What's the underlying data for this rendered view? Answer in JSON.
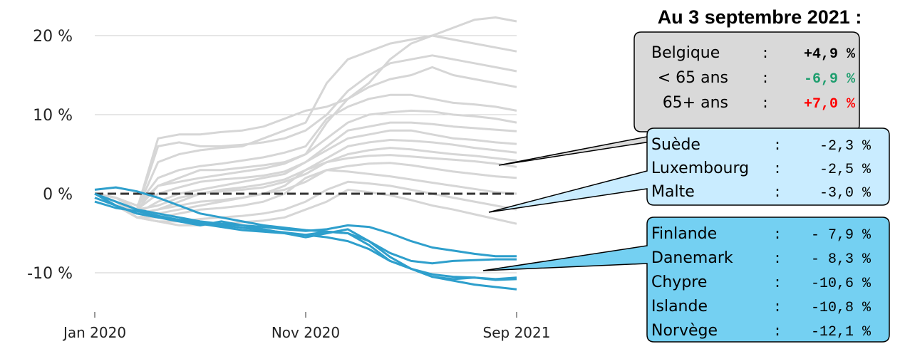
{
  "chart_data": {
    "type": "line",
    "title": "",
    "xlabel": "",
    "ylabel": "",
    "x_ticks": [
      "Jan 2020",
      "Nov 2020",
      "Sep 2021"
    ],
    "y_ticks": [
      {
        "value": 20,
        "label": "20 %"
      },
      {
        "value": 10,
        "label": "10 %"
      },
      {
        "value": 0,
        "label": "0 %"
      },
      {
        "value": -10,
        "label": "-10 %"
      }
    ],
    "ylim": [
      -15,
      23
    ],
    "xlim": [
      "2020-01",
      "2021-09"
    ],
    "reference_line": 0,
    "grid": "horizontal",
    "colors": {
      "highlight": "#2e9fcc",
      "background": "#d6d6d6",
      "reference": "#333333",
      "positive": "#ff0000",
      "negative": "#1e9e6e"
    },
    "x_index": [
      "2020-01",
      "2020-02",
      "2020-03",
      "2020-04",
      "2020-05",
      "2020-06",
      "2020-07",
      "2020-08",
      "2020-09",
      "2020-10",
      "2020-11",
      "2020-12",
      "2021-01",
      "2021-02",
      "2021-03",
      "2021-04",
      "2021-05",
      "2021-06",
      "2021-07",
      "2021-08",
      "2021-09"
    ],
    "background_series": [
      [
        0,
        -1,
        -2,
        7,
        7.5,
        7.5,
        7.8,
        8,
        8.5,
        9.5,
        10.5,
        11,
        12,
        14,
        17,
        19,
        20,
        21,
        22,
        22.3,
        21.8
      ],
      [
        0,
        -1,
        -2,
        4,
        5,
        5.5,
        5.8,
        6,
        7,
        8,
        9,
        14,
        17,
        18,
        19,
        19.5,
        20,
        19.5,
        19,
        18.5,
        18
      ],
      [
        0,
        -1,
        -2,
        6,
        6.5,
        6,
        6,
        6.2,
        6.5,
        7,
        8,
        10,
        13,
        15,
        16.5,
        17,
        17.5,
        17,
        16.5,
        16,
        15.5
      ],
      [
        0,
        -0.5,
        -1.5,
        1,
        2,
        3,
        3,
        3.3,
        3.6,
        4,
        5,
        9,
        12,
        13.5,
        14.5,
        15,
        16,
        15,
        14.5,
        14,
        13.5
      ],
      [
        0,
        -0.5,
        -1.5,
        2,
        3,
        3.5,
        3.8,
        4.2,
        4.6,
        5.2,
        6,
        9.5,
        11,
        12,
        12.5,
        12.5,
        12,
        11.5,
        11.3,
        11,
        10.5
      ],
      [
        0,
        -1,
        -2,
        1,
        1.5,
        2,
        2.4,
        2.8,
        3.2,
        3.8,
        5,
        7,
        9,
        10,
        10.3,
        10.5,
        10.4,
        10,
        9.8,
        9.5,
        9
      ],
      [
        0,
        -1,
        -2,
        0,
        0.8,
        1.5,
        1.8,
        2,
        2.3,
        2.8,
        4,
        6,
        8,
        8.5,
        9,
        9,
        8.8,
        8.5,
        8.3,
        8.1,
        7.9
      ],
      [
        0,
        -1,
        -2.5,
        -1,
        0,
        0.5,
        1,
        1.5,
        2,
        2.5,
        4,
        5.5,
        7,
        7.5,
        8,
        8,
        7.5,
        7,
        6.8,
        6.5,
        6.3
      ],
      [
        0,
        -0.5,
        -2,
        -1.5,
        -0.5,
        0,
        0.5,
        0.8,
        1.2,
        1.8,
        3,
        4.5,
        6,
        6.5,
        6.8,
        6.7,
        6.5,
        6.2,
        5.8,
        5.5,
        5.2
      ],
      [
        0,
        -1,
        -2.5,
        -2,
        -1,
        0,
        0.3,
        0.5,
        0.8,
        1.5,
        2.5,
        4,
        5,
        5.5,
        5.8,
        5.6,
        5.3,
        5,
        4.8,
        4.5,
        4.2
      ],
      [
        0,
        -1,
        -3,
        -2.5,
        -2,
        -1.5,
        -1,
        -0.5,
        0,
        1,
        3,
        4,
        4.5,
        4.8,
        4.9,
        4.7,
        4.5,
        4.3,
        4.1,
        3.8,
        3.4
      ],
      [
        0,
        -1,
        -2.5,
        -2,
        -1.5,
        -1,
        -0.8,
        -0.5,
        0,
        0.5,
        1.5,
        3,
        3.5,
        3.8,
        3.9,
        3.6,
        3.2,
        2.8,
        2.5,
        2.2,
        2.0
      ],
      [
        0,
        -1.5,
        -3,
        -3,
        -2.5,
        -2,
        -1.8,
        -1.5,
        -1,
        0,
        2,
        3,
        2.8,
        2.5,
        2.2,
        1.8,
        1.4,
        1,
        0.6,
        0.2,
        0
      ],
      [
        0,
        -1.5,
        -3,
        -3.5,
        -3.5,
        -3.2,
        -3,
        -2.8,
        -2.5,
        -2,
        -1,
        0.5,
        1.5,
        1.3,
        1,
        0.5,
        0,
        -0.5,
        -1,
        -1.5,
        -2
      ],
      [
        0,
        -1.5,
        -3,
        -3.5,
        -4,
        -4,
        -3.8,
        -3.6,
        -3.4,
        -3,
        -2,
        -1,
        0.5,
        0.2,
        -0.2,
        -0.8,
        -1.5,
        -2,
        -2.6,
        -3.2,
        -3.8
      ]
    ],
    "highlight_series": [
      [
        0,
        -1,
        -2,
        -2.5,
        -3,
        -3.5,
        -3.8,
        -4,
        -4.2,
        -4.5,
        -4.7,
        -4.5,
        -4,
        -4.2,
        -5,
        -6,
        -6.8,
        -7.2,
        -7.6,
        -7.9,
        -7.9
      ],
      [
        0.5,
        0.8,
        0.3,
        -0.5,
        -1.5,
        -2.5,
        -3,
        -3.5,
        -4,
        -4.3,
        -4.6,
        -4.8,
        -5,
        -6,
        -7.5,
        -8.5,
        -8.8,
        -8.5,
        -8.4,
        -8.3,
        -8.3
      ],
      [
        -0.5,
        -1.5,
        -2.5,
        -3,
        -3.3,
        -3.8,
        -4.2,
        -4.6,
        -4.8,
        -5,
        -5.2,
        -4.8,
        -5,
        -6.5,
        -8.5,
        -9.5,
        -10.2,
        -10.5,
        -10.6,
        -10.8,
        -10.6
      ],
      [
        0,
        -1.5,
        -2.5,
        -3,
        -3.5,
        -4,
        -3.5,
        -4,
        -4.5,
        -5,
        -5.5,
        -5,
        -4.5,
        -6,
        -8,
        -9.5,
        -10.5,
        -10.8,
        -10.6,
        -10.9,
        -10.8
      ],
      [
        -1,
        -1.8,
        -2.2,
        -2.8,
        -3.3,
        -3.6,
        -4,
        -4.3,
        -4.6,
        -4.9,
        -5.2,
        -5.5,
        -6,
        -7,
        -8.5,
        -9.5,
        -10.5,
        -11,
        -11.5,
        -11.8,
        -12.1
      ]
    ]
  },
  "heading": "Au 3 septembre 2021 :",
  "boxes": {
    "belgium": {
      "rows": [
        {
          "name": "Belgique",
          "sep": ":",
          "value": "+4,9 %",
          "tone": "bold"
        },
        {
          "name": "< 65 ans",
          "sep": ":",
          "value": "-6,9 %",
          "tone": "green"
        },
        {
          "name": "65+ ans",
          "sep": ":",
          "value": "+7,0 %",
          "tone": "red"
        }
      ]
    },
    "group_a": {
      "rows": [
        {
          "name": "Suède",
          "sep": ":",
          "value": "-2,3 %"
        },
        {
          "name": "Luxembourg",
          "sep": ":",
          "value": "-2,5 %"
        },
        {
          "name": "Malte",
          "sep": ":",
          "value": "-3,0 %"
        }
      ]
    },
    "group_b": {
      "rows": [
        {
          "name": "Finlande",
          "sep": ":",
          "value": "- 7,9 %"
        },
        {
          "name": "Danemark",
          "sep": ":",
          "value": "- 8,3 %"
        },
        {
          "name": "Chypre",
          "sep": ":",
          "value": "-10,6 %"
        },
        {
          "name": "Islande",
          "sep": ":",
          "value": "-10,8 %"
        },
        {
          "name": "Norvège",
          "sep": ":",
          "value": "-12,1 %"
        }
      ]
    }
  }
}
